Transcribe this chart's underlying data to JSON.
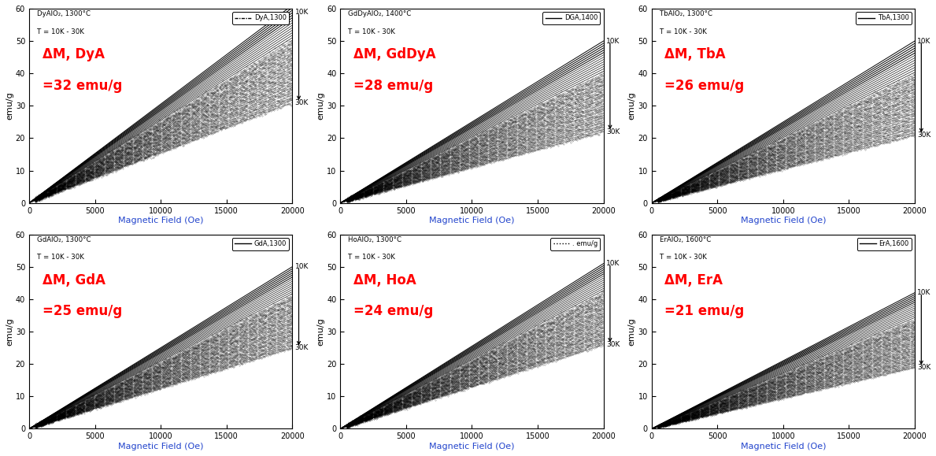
{
  "panels": [
    {
      "title_line1": "DyAlO₂, 1300°C",
      "title_line2": "T = 10K - 30K",
      "legend_label": "DyA,1300",
      "legend_style": "dotdash",
      "delta_line1": "ΔM, DyA",
      "delta_line2": "=32 emu/g",
      "slope_max": 0.00305,
      "slope_min": 0.00155,
      "n_lines": 40,
      "ylim_max": 60,
      "row": 0,
      "col": 0
    },
    {
      "title_line1": "GdDyAlO₂, 1400°C",
      "title_line2": "T = 10K - 30K",
      "legend_label": "DGA,1400",
      "legend_style": "solid",
      "delta_line1": "ΔM, GdDyA",
      "delta_line2": "=28 emu/g",
      "slope_max": 0.0025,
      "slope_min": 0.0011,
      "n_lines": 40,
      "ylim_max": 60,
      "row": 0,
      "col": 1
    },
    {
      "title_line1": "TbAlO₂, 1300°C",
      "title_line2": "T = 10K - 30K",
      "legend_label": "TbA,1300",
      "legend_style": "solid",
      "delta_line1": "ΔM, TbA",
      "delta_line2": "=26 emu/g",
      "slope_max": 0.0025,
      "slope_min": 0.00105,
      "n_lines": 40,
      "ylim_max": 60,
      "row": 0,
      "col": 2
    },
    {
      "title_line1": "GdAlO₂, 1300°C",
      "title_line2": "T = 10K - 30K",
      "legend_label": "GdA,1300",
      "legend_style": "solid",
      "delta_line1": "ΔM, GdA",
      "delta_line2": "=25 emu/g",
      "slope_max": 0.0025,
      "slope_min": 0.00125,
      "n_lines": 40,
      "ylim_max": 60,
      "row": 1,
      "col": 0
    },
    {
      "title_line1": "HoAlO₂, 1300°C",
      "title_line2": "T = 10K - 30K",
      "legend_label": ". emu/g",
      "legend_style": "dotted",
      "delta_line1": "ΔM, HoA",
      "delta_line2": "=24 emu/g",
      "slope_max": 0.00255,
      "slope_min": 0.0013,
      "n_lines": 40,
      "ylim_max": 60,
      "row": 1,
      "col": 1
    },
    {
      "title_line1": "ErAlO₂, 1600°C",
      "title_line2": "T = 10K - 30K",
      "legend_label": "ErA,1600",
      "legend_style": "solid",
      "delta_line1": "ΔM, ErA",
      "delta_line2": "=21 emu/g",
      "slope_max": 0.0021,
      "slope_min": 0.00095,
      "n_lines": 40,
      "ylim_max": 60,
      "row": 1,
      "col": 2
    }
  ],
  "xlim": [
    0,
    20000
  ],
  "xticks": [
    0,
    5000,
    10000,
    15000,
    20000
  ],
  "yticks": [
    0,
    10,
    20,
    30,
    40,
    50,
    60
  ],
  "ylim_max": 60,
  "xlabel": "Magnetic Field (Oe)",
  "ylabel": "emu/g",
  "background_color": "#ffffff",
  "line_color": "black",
  "delta_text_color": "#ff0000",
  "title_color": "#000000",
  "xlabel_color": "#2244cc",
  "ylabel_color": "#000000"
}
